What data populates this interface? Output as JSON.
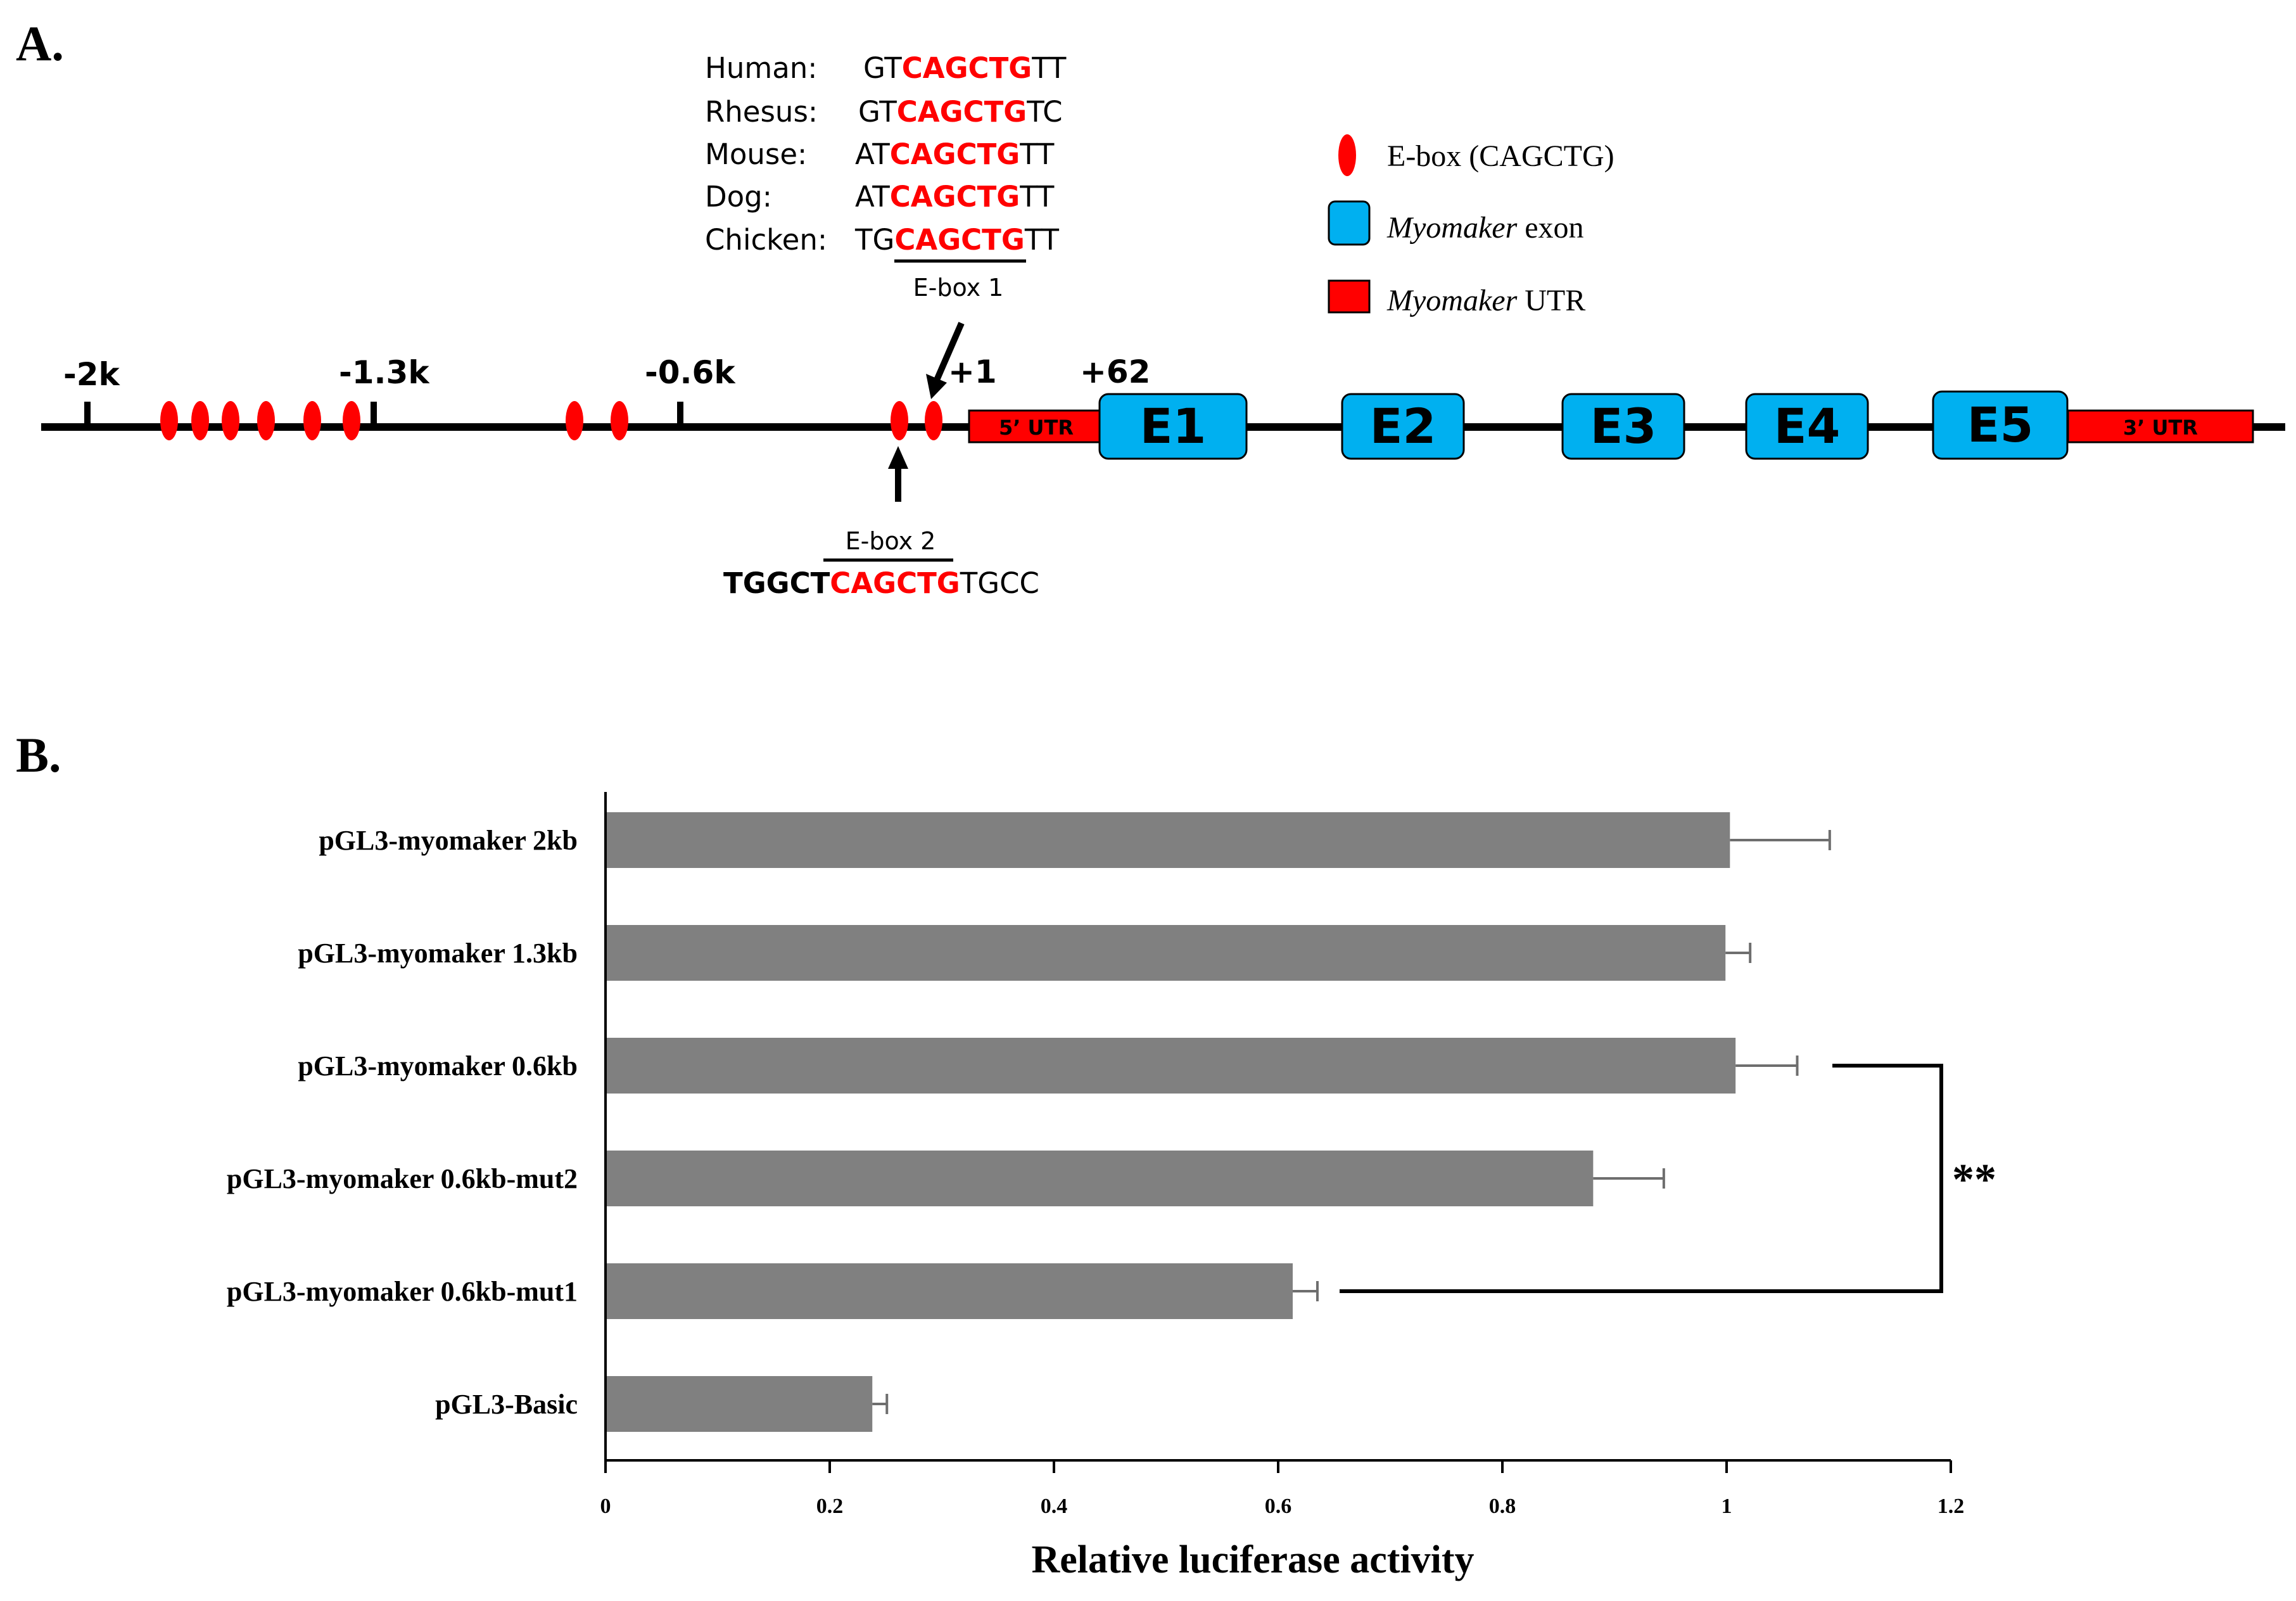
{
  "panel_a": {
    "label": "A.",
    "ticks": [
      "-2k",
      "-1.3k",
      "-0.6k",
      "+1",
      "+62"
    ],
    "species_rows": [
      {
        "name": "Human:",
        "left": "GT",
        "box": "CAGCTG",
        "right": "TT"
      },
      {
        "name": "Rhesus:",
        "left": "GT",
        "box": "CAGCTG",
        "right": "TC"
      },
      {
        "name": "Mouse:",
        "left": "AT",
        "box": "CAGCTG",
        "right": "TT"
      },
      {
        "name": "Dog:",
        "left": "AT",
        "box": "CAGCTG",
        "right": "TT"
      },
      {
        "name": "Chicken:",
        "left": "TG",
        "box": "CAGCTG",
        "right": "TT"
      }
    ],
    "ebox1_label": "E-box 1",
    "ebox2_label": "E-box 2",
    "ebox2_seq": {
      "left": "TGGCT",
      "box": "CAGCTG",
      "right": "TGCC"
    },
    "legend": {
      "ebox": "E-box (CAGCTG)",
      "exon_italic": "Myomaker",
      "exon_rest": " exon",
      "utr_italic": "Myomaker",
      "utr_rest": " UTR"
    },
    "utr5": "5’ UTR",
    "utr3": "3’ UTR",
    "exons": [
      "E1",
      "E2",
      "E3",
      "E4",
      "E5"
    ],
    "colors": {
      "ebox": "#ff0000",
      "exon": "#00b0f0",
      "utr": "#ff0000",
      "line": "#000000"
    }
  },
  "panel_b": {
    "label": "B.",
    "significance": "**"
  },
  "chart_data": {
    "type": "bar",
    "orientation": "horizontal",
    "categories": [
      "pGL3-myomaker 2kb",
      "pGL3-myomaker 1.3kb",
      "pGL3-myomaker 0.6kb",
      "pGL3-myomaker 0.6kb-mut2",
      "pGL3-myomaker 0.6kb-mut1",
      "pGL3-Basic"
    ],
    "values": [
      1.003,
      0.999,
      1.008,
      0.881,
      0.613,
      0.238
    ],
    "errors": [
      0.089,
      0.022,
      0.055,
      0.063,
      0.022,
      0.013
    ],
    "xlabel": "Relative luciferase activity",
    "ylabel": "",
    "xlim": [
      0,
      1.2
    ],
    "xticks": [
      "0",
      "0.2",
      "0.4",
      "0.6",
      "0.8",
      "1",
      "1.2"
    ],
    "bar_color": "#808080",
    "grid": false,
    "annotation": {
      "text": "**",
      "between": [
        "pGL3-myomaker 0.6kb",
        "pGL3-myomaker 0.6kb-mut1"
      ]
    }
  }
}
